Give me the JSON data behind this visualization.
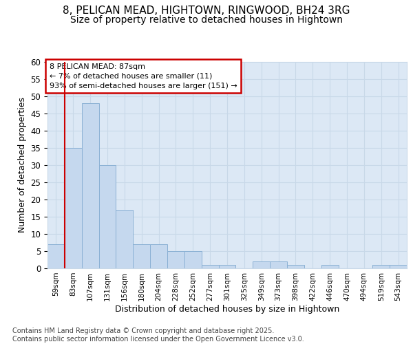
{
  "title_line1": "8, PELICAN MEAD, HIGHTOWN, RINGWOOD, BH24 3RG",
  "title_line2": "Size of property relative to detached houses in Hightown",
  "xlabel": "Distribution of detached houses by size in Hightown",
  "ylabel": "Number of detached properties",
  "footer": "Contains HM Land Registry data © Crown copyright and database right 2025.\nContains public sector information licensed under the Open Government Licence v3.0.",
  "categories": [
    "59sqm",
    "83sqm",
    "107sqm",
    "131sqm",
    "156sqm",
    "180sqm",
    "204sqm",
    "228sqm",
    "252sqm",
    "277sqm",
    "301sqm",
    "325sqm",
    "349sqm",
    "373sqm",
    "398sqm",
    "422sqm",
    "446sqm",
    "470sqm",
    "494sqm",
    "519sqm",
    "543sqm"
  ],
  "values": [
    7,
    35,
    48,
    30,
    17,
    7,
    7,
    5,
    5,
    1,
    1,
    0,
    2,
    2,
    1,
    0,
    1,
    0,
    0,
    1,
    1
  ],
  "bar_color": "#c5d8ee",
  "bar_edge_color": "#8ab0d4",
  "highlight_line_color": "#cc0000",
  "annotation_box_text": "8 PELICAN MEAD: 87sqm\n← 7% of detached houses are smaller (11)\n93% of semi-detached houses are larger (151) →",
  "annotation_box_color": "#cc0000",
  "ylim": [
    0,
    60
  ],
  "yticks": [
    0,
    5,
    10,
    15,
    20,
    25,
    30,
    35,
    40,
    45,
    50,
    55,
    60
  ],
  "grid_color": "#c8d8e8",
  "bg_color": "#dce8f5",
  "title_fontsize": 11,
  "subtitle_fontsize": 10,
  "axis_label_fontsize": 9,
  "tick_fontsize": 8.5,
  "footer_fontsize": 7
}
